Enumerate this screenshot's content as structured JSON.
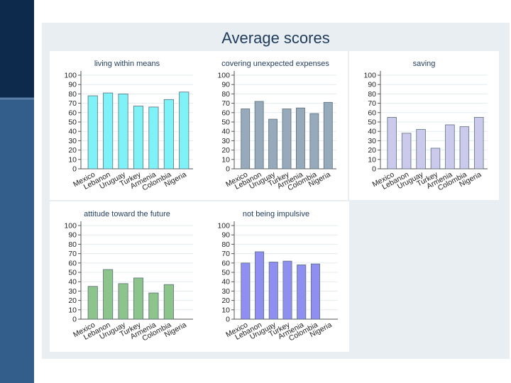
{
  "page": {
    "title": "Average scores"
  },
  "chart_data": [
    {
      "type": "bar",
      "title": "living within means",
      "categories": [
        "Mexico",
        "Lebanon",
        "Uruguay",
        "Turkey",
        "Armenia",
        "Colombia",
        "Nigeria"
      ],
      "values": [
        78,
        81,
        80,
        67,
        66,
        74,
        82
      ],
      "ylim": [
        0,
        100
      ],
      "yticks": [
        0,
        10,
        20,
        30,
        40,
        50,
        60,
        70,
        80,
        90,
        100
      ],
      "xlabel": "",
      "ylabel": "",
      "color": "#7ff2f8"
    },
    {
      "type": "bar",
      "title": "covering unexpected expenses",
      "categories": [
        "Mexico",
        "Lebanon",
        "Uruguay",
        "Turkey",
        "Armenia",
        "Colombia",
        "Nigeria"
      ],
      "values": [
        64,
        72,
        53,
        64,
        65,
        59,
        71
      ],
      "ylim": [
        0,
        100
      ],
      "yticks": [
        0,
        10,
        20,
        30,
        40,
        50,
        60,
        70,
        80,
        90,
        100
      ],
      "xlabel": "",
      "ylabel": "",
      "color": "#97aabb"
    },
    {
      "type": "bar",
      "title": "saving",
      "categories": [
        "Mexico",
        "Lebanon",
        "Uruguay",
        "Turkey",
        "Armenia",
        "Colombia",
        "Nigeria"
      ],
      "values": [
        55,
        38,
        42,
        22,
        47,
        45,
        55
      ],
      "ylim": [
        0,
        100
      ],
      "yticks": [
        0,
        10,
        20,
        30,
        40,
        50,
        60,
        70,
        80,
        90,
        100
      ],
      "xlabel": "",
      "ylabel": "",
      "color": "#cccaec"
    },
    {
      "type": "bar",
      "title": "attitude toward the future",
      "categories": [
        "Mexico",
        "Lebanon",
        "Uruguay",
        "Turkey",
        "Armenia",
        "Colombia",
        "Nigeria"
      ],
      "values": [
        35,
        53,
        38,
        44,
        28,
        37,
        0
      ],
      "ylim": [
        0,
        100
      ],
      "yticks": [
        0,
        10,
        20,
        30,
        40,
        50,
        60,
        70,
        80,
        90,
        100
      ],
      "xlabel": "",
      "ylabel": "",
      "color": "#8cc48c"
    },
    {
      "type": "bar",
      "title": "not being impulsive",
      "categories": [
        "Mexico",
        "Lebanon",
        "Uruguay",
        "Turkey",
        "Armenia",
        "Colombia",
        "Nigeria"
      ],
      "values": [
        60,
        72,
        61,
        62,
        58,
        59,
        0
      ],
      "ylim": [
        0,
        100
      ],
      "yticks": [
        0,
        10,
        20,
        30,
        40,
        50,
        60,
        70,
        80,
        90,
        100
      ],
      "xlabel": "",
      "ylabel": "",
      "color": "#8f8ff2"
    }
  ]
}
